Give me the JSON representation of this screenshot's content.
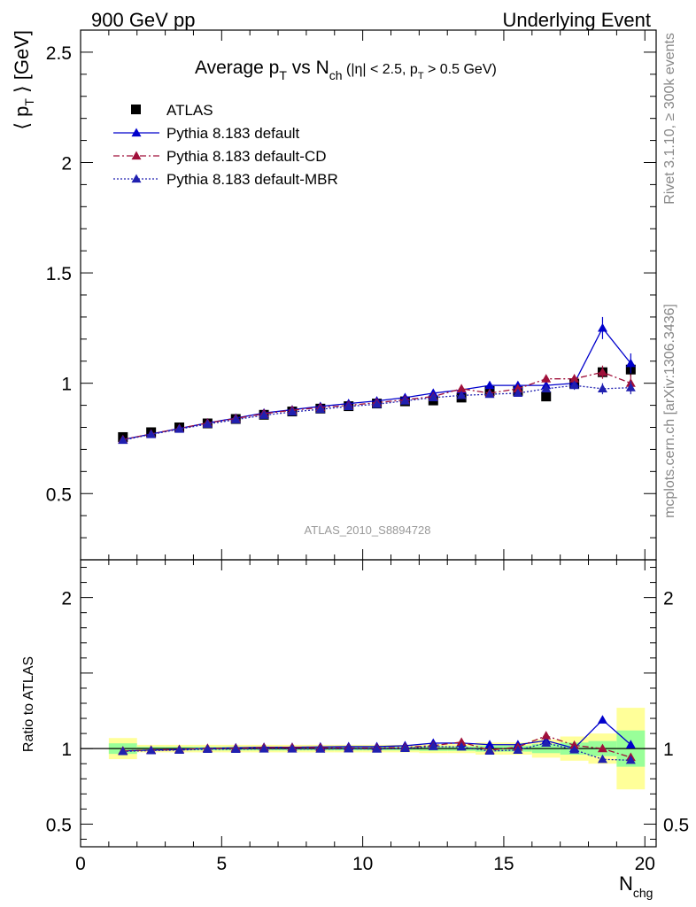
{
  "header": {
    "left": "900 GeV pp",
    "right": "Underlying Event"
  },
  "side_notes": {
    "rivet": "Rivet 3.1.10, ≥ 300k events",
    "mcplots": "mcplots.cern.ch [arXiv:1306.3436]"
  },
  "watermark": "ATLAS_2010_S8894728",
  "colors": {
    "atlas": "#000000",
    "default": "#0000cc",
    "cd": "#a0103a",
    "mbr": "#2020b0",
    "band_yellow": "#ffff99",
    "band_green": "#99ff99"
  },
  "chart_data": [
    {
      "type": "scatter",
      "title": {
        "main": "Average p",
        "sub1": "T",
        "mid": " vs N",
        "sub2": "ch",
        "cut_open": " (|η| < 2.5, p",
        "cut_sub": "T",
        "cut_close": " > 0.5 GeV)"
      },
      "ylabel": {
        "pre": "⟨ p",
        "sub": "T",
        "post": " ⟩ [GeV]"
      },
      "ylim": [
        0.2,
        2.6
      ],
      "xlim": [
        0,
        20.4
      ],
      "yticks": [
        "0.5",
        "1",
        "1.5",
        "2",
        "2.5"
      ],
      "yticks_values": [
        0.5,
        1,
        1.5,
        2,
        2.5
      ],
      "x": [
        1.5,
        2.5,
        3.5,
        4.5,
        5.5,
        6.5,
        7.5,
        8.5,
        9.5,
        10.5,
        11.5,
        12.5,
        13.5,
        14.5,
        15.5,
        16.5,
        17.5,
        18.5,
        19.5
      ],
      "series": [
        {
          "name": "ATLAS",
          "style": "data",
          "values": [
            0.756,
            0.778,
            0.8,
            0.818,
            0.838,
            0.857,
            0.872,
            0.885,
            0.896,
            0.908,
            0.918,
            0.922,
            0.935,
            0.965,
            0.965,
            0.94,
            0.998,
            1.05,
            1.062
          ],
          "errors": [
            0.005,
            0.005,
            0.005,
            0.005,
            0.005,
            0.005,
            0.005,
            0.005,
            0.006,
            0.006,
            0.007,
            0.008,
            0.009,
            0.01,
            0.012,
            0.014,
            0.016,
            0.02,
            0.03
          ]
        },
        {
          "name": "Pythia 8.183 default",
          "style": "solid",
          "values": [
            0.745,
            0.77,
            0.795,
            0.82,
            0.842,
            0.865,
            0.88,
            0.895,
            0.908,
            0.92,
            0.935,
            0.955,
            0.97,
            0.99,
            0.99,
            0.99,
            1.0,
            1.25,
            1.09
          ],
          "errors": [
            0.004,
            0.004,
            0.004,
            0.004,
            0.004,
            0.004,
            0.004,
            0.005,
            0.005,
            0.006,
            0.007,
            0.008,
            0.009,
            0.011,
            0.013,
            0.016,
            0.02,
            0.05,
            0.045
          ]
        },
        {
          "name": "Pythia 8.183 default-CD",
          "style": "dashdot",
          "values": [
            0.745,
            0.77,
            0.795,
            0.82,
            0.84,
            0.862,
            0.878,
            0.89,
            0.9,
            0.912,
            0.925,
            0.94,
            0.975,
            0.955,
            0.975,
            1.02,
            1.02,
            1.05,
            1.0
          ],
          "errors": [
            0.004,
            0.004,
            0.004,
            0.004,
            0.004,
            0.004,
            0.004,
            0.005,
            0.005,
            0.006,
            0.007,
            0.008,
            0.009,
            0.011,
            0.013,
            0.016,
            0.02,
            0.03,
            0.04
          ]
        },
        {
          "name": "Pythia 8.183 default-MBR",
          "style": "dotted",
          "values": [
            0.742,
            0.768,
            0.792,
            0.815,
            0.835,
            0.855,
            0.87,
            0.882,
            0.895,
            0.905,
            0.92,
            0.935,
            0.945,
            0.95,
            0.955,
            0.975,
            0.99,
            0.975,
            0.98
          ],
          "errors": [
            0.004,
            0.004,
            0.004,
            0.004,
            0.004,
            0.004,
            0.004,
            0.005,
            0.005,
            0.006,
            0.007,
            0.008,
            0.009,
            0.011,
            0.013,
            0.016,
            0.02,
            0.025,
            0.03
          ]
        }
      ]
    },
    {
      "type": "scatter",
      "ylabel": "Ratio to ATLAS",
      "xlabel": {
        "pre": "N",
        "sub": "chg"
      },
      "ylim": [
        0.35,
        2.25
      ],
      "xlim": [
        0,
        20.4
      ],
      "xticks": [
        "0",
        "5",
        "10",
        "15",
        "20"
      ],
      "xticks_values": [
        0,
        5,
        10,
        15,
        20
      ],
      "yticks": [
        "0.5",
        "1",
        "2"
      ],
      "yticks_values": [
        0.5,
        1,
        2
      ],
      "x": [
        1.5,
        2.5,
        3.5,
        4.5,
        5.5,
        6.5,
        7.5,
        8.5,
        9.5,
        10.5,
        11.5,
        12.5,
        13.5,
        14.5,
        15.5,
        16.5,
        17.5,
        18.5,
        19.5
      ],
      "band_outer": [
        0.07,
        0.025,
        0.025,
        0.025,
        0.025,
        0.025,
        0.025,
        0.025,
        0.025,
        0.025,
        0.025,
        0.03,
        0.03,
        0.04,
        0.04,
        0.06,
        0.08,
        0.1,
        0.27
      ],
      "band_inner": [
        0.035,
        0.012,
        0.012,
        0.012,
        0.012,
        0.012,
        0.012,
        0.012,
        0.012,
        0.012,
        0.012,
        0.015,
        0.015,
        0.02,
        0.02,
        0.03,
        0.04,
        0.05,
        0.12
      ],
      "series": [
        {
          "name": "Pythia 8.183 default",
          "style": "solid",
          "values": [
            0.985,
            0.99,
            0.994,
            1.002,
            1.005,
            1.009,
            1.009,
            1.011,
            1.013,
            1.013,
            1.019,
            1.036,
            1.037,
            1.026,
            1.026,
            1.053,
            1.002,
            1.19,
            1.026
          ]
        },
        {
          "name": "Pythia 8.183 default-CD",
          "style": "dashdot",
          "values": [
            0.985,
            0.99,
            0.994,
            1.002,
            1.002,
            1.006,
            1.007,
            1.006,
            1.004,
            1.004,
            1.008,
            1.02,
            1.043,
            0.99,
            1.01,
            1.085,
            1.022,
            1.0,
            0.942
          ]
        },
        {
          "name": "Pythia 8.183 default-MBR",
          "style": "dotted",
          "values": [
            0.981,
            0.987,
            0.99,
            0.996,
            0.996,
            0.998,
            0.998,
            0.997,
            0.999,
            0.997,
            1.002,
            1.014,
            1.011,
            0.984,
            0.99,
            1.037,
            0.992,
            0.929,
            0.923
          ]
        }
      ]
    }
  ]
}
